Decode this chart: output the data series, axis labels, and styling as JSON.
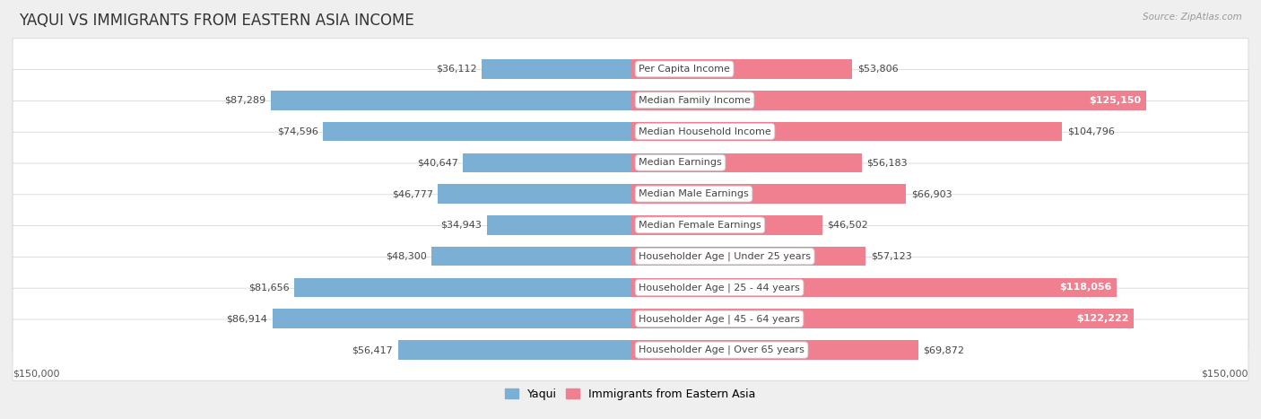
{
  "title": "YAQUI VS IMMIGRANTS FROM EASTERN ASIA INCOME",
  "source": "Source: ZipAtlas.com",
  "categories": [
    "Per Capita Income",
    "Median Family Income",
    "Median Household Income",
    "Median Earnings",
    "Median Male Earnings",
    "Median Female Earnings",
    "Householder Age | Under 25 years",
    "Householder Age | 25 - 44 years",
    "Householder Age | 45 - 64 years",
    "Householder Age | Over 65 years"
  ],
  "yaqui_values": [
    36112,
    87289,
    74596,
    40647,
    46777,
    34943,
    48300,
    81656,
    86914,
    56417
  ],
  "eastern_asia_values": [
    53806,
    125150,
    104796,
    56183,
    66903,
    46502,
    57123,
    118056,
    122222,
    69872
  ],
  "yaqui_labels": [
    "$36,112",
    "$87,289",
    "$74,596",
    "$40,647",
    "$46,777",
    "$34,943",
    "$48,300",
    "$81,656",
    "$86,914",
    "$56,417"
  ],
  "eastern_asia_labels": [
    "$53,806",
    "$125,150",
    "$104,796",
    "$56,183",
    "$66,903",
    "$46,502",
    "$57,123",
    "$118,056",
    "$122,222",
    "$69,872"
  ],
  "yaqui_color": "#7bafd4",
  "eastern_asia_color": "#f08090",
  "yaqui_color_dark": "#5a8ec8",
  "eastern_asia_color_dark": "#e8406a",
  "max_value": 150000,
  "xlabel_left": "$150,000",
  "xlabel_right": "$150,000",
  "background_color": "#efefef",
  "title_fontsize": 12,
  "label_fontsize": 8,
  "category_fontsize": 8,
  "legend_fontsize": 9,
  "high_value_threshold": 108000
}
